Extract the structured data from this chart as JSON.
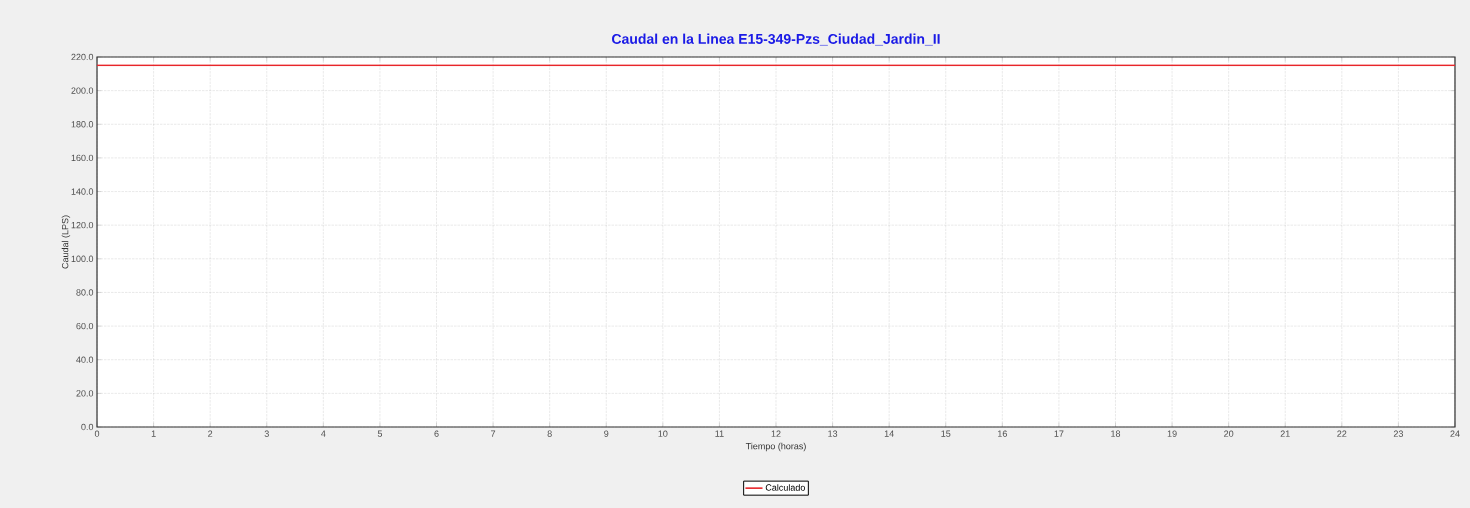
{
  "chart_data": {
    "type": "line",
    "title": "Caudal en la Linea E15-349-Pzs_Ciudad_Jardin_II",
    "xlabel": "Tiempo (horas)",
    "ylabel": "Caudal (LPS)",
    "x": [
      0,
      24
    ],
    "series": [
      {
        "name": "Calculado",
        "color": "#e8262a",
        "values": [
          215,
          215
        ]
      }
    ],
    "xlim": [
      0,
      24
    ],
    "xticks": [
      0,
      1,
      2,
      3,
      4,
      5,
      6,
      7,
      8,
      9,
      10,
      11,
      12,
      13,
      14,
      15,
      16,
      17,
      18,
      19,
      20,
      21,
      22,
      23,
      24
    ],
    "ylim": [
      0,
      220
    ],
    "yticks": [
      {
        "value": 0,
        "label": "0.0"
      },
      {
        "value": 20,
        "label": "20.0"
      },
      {
        "value": 40,
        "label": "40.0"
      },
      {
        "value": 60,
        "label": "60.0"
      },
      {
        "value": 80,
        "label": "80.0"
      },
      {
        "value": 100,
        "label": "100.0"
      },
      {
        "value": 120,
        "label": "120.0"
      },
      {
        "value": 140,
        "label": "140.0"
      },
      {
        "value": 160,
        "label": "160.0"
      },
      {
        "value": 180,
        "label": "180.0"
      },
      {
        "value": 200,
        "label": "200.0"
      },
      {
        "value": 220,
        "label": "220.0"
      }
    ],
    "grid": true,
    "legend": "bottom",
    "marker": "none",
    "line_style": "solid"
  }
}
